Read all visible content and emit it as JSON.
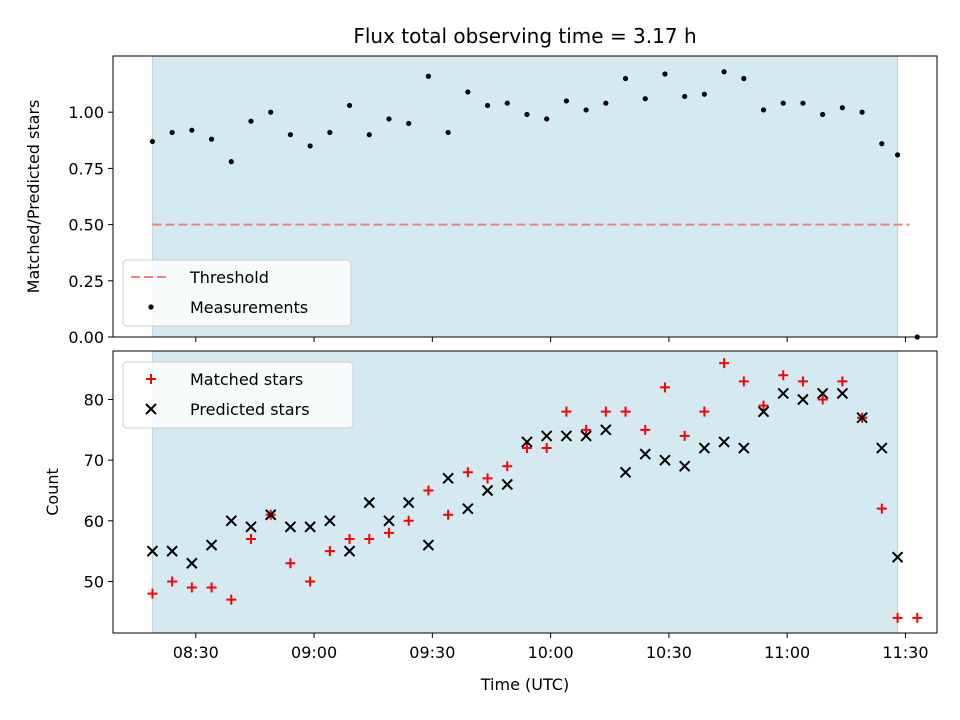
{
  "chart_data": [
    {
      "type": "scatter",
      "title": "Flux total observing time = 3.17 h",
      "xlabel": "",
      "ylabel": "Matched/Predicted stars",
      "ylim": [
        0.0,
        1.25
      ],
      "yticks": [
        "0.00",
        "0.25",
        "0.50",
        "0.75",
        "1.00"
      ],
      "xlim": [
        "08:09",
        "11:38"
      ],
      "xaxis_labels_shown": false,
      "observing_window": {
        "start": "08:19",
        "end": "11:28",
        "color": "#d4eaf0"
      },
      "threshold": {
        "name": "Threshold",
        "value": 0.5,
        "x_start": "08:19",
        "x_end": "11:31",
        "color": "#f08080",
        "style": "dashed"
      },
      "series": [
        {
          "name": "Measurements",
          "color": "#000000",
          "marker": "dot",
          "x": [
            "08:19",
            "08:24",
            "08:29",
            "08:34",
            "08:39",
            "08:44",
            "08:49",
            "08:54",
            "08:59",
            "09:04",
            "09:09",
            "09:14",
            "09:19",
            "09:24",
            "09:29",
            "09:34",
            "09:39",
            "09:44",
            "09:49",
            "09:54",
            "09:59",
            "10:04",
            "10:09",
            "10:14",
            "10:19",
            "10:24",
            "10:29",
            "10:34",
            "10:39",
            "10:44",
            "10:49",
            "10:54",
            "10:59",
            "11:04",
            "11:09",
            "11:14",
            "11:19",
            "11:24",
            "11:28",
            "11:33"
          ],
          "y": [
            0.87,
            0.91,
            0.92,
            0.88,
            0.78,
            0.96,
            1.0,
            0.9,
            0.85,
            0.91,
            1.03,
            0.9,
            0.97,
            0.95,
            1.16,
            0.91,
            1.09,
            1.03,
            1.04,
            0.99,
            0.97,
            1.05,
            1.01,
            1.04,
            1.15,
            1.06,
            1.17,
            1.07,
            1.08,
            1.18,
            1.15,
            1.01,
            1.04,
            1.04,
            0.99,
            1.02,
            1.0,
            0.86,
            0.81,
            0.0
          ]
        }
      ],
      "legend": {
        "placement": "lower-left",
        "entries": [
          "Threshold",
          "Measurements"
        ]
      }
    },
    {
      "type": "scatter",
      "title": "",
      "xlabel": "Time (UTC)",
      "ylabel": "Count",
      "ylim": [
        41.5,
        88.0
      ],
      "yticks": [
        "50",
        "60",
        "70",
        "80"
      ],
      "xlim": [
        "08:09",
        "11:38"
      ],
      "xticks": [
        "08:30",
        "09:00",
        "09:30",
        "10:00",
        "10:30",
        "11:00",
        "11:30"
      ],
      "observing_window": {
        "start": "08:19",
        "end": "11:28",
        "color": "#d4eaf0"
      },
      "series": [
        {
          "name": "Matched stars",
          "color": "#ff0000",
          "marker": "plus",
          "x": [
            "08:19",
            "08:24",
            "08:29",
            "08:34",
            "08:39",
            "08:44",
            "08:49",
            "08:54",
            "08:59",
            "09:04",
            "09:09",
            "09:14",
            "09:19",
            "09:24",
            "09:29",
            "09:34",
            "09:39",
            "09:44",
            "09:49",
            "09:54",
            "09:59",
            "10:04",
            "10:09",
            "10:14",
            "10:19",
            "10:24",
            "10:29",
            "10:34",
            "10:39",
            "10:44",
            "10:49",
            "10:54",
            "10:59",
            "11:04",
            "11:09",
            "11:14",
            "11:19",
            "11:24",
            "11:28",
            "11:33"
          ],
          "y": [
            48,
            50,
            49,
            49,
            47,
            57,
            61,
            53,
            50,
            55,
            57,
            57,
            58,
            60,
            65,
            61,
            68,
            67,
            69,
            72,
            72,
            78,
            75,
            78,
            78,
            75,
            82,
            74,
            78,
            86,
            83,
            79,
            84,
            83,
            80,
            83,
            77,
            62,
            44,
            44
          ]
        },
        {
          "name": "Predicted stars",
          "color": "#000000",
          "marker": "x",
          "x": [
            "08:19",
            "08:24",
            "08:29",
            "08:34",
            "08:39",
            "08:44",
            "08:49",
            "08:54",
            "08:59",
            "09:04",
            "09:09",
            "09:14",
            "09:19",
            "09:24",
            "09:29",
            "09:34",
            "09:39",
            "09:44",
            "09:49",
            "09:54",
            "09:59",
            "10:04",
            "10:09",
            "10:14",
            "10:19",
            "10:24",
            "10:29",
            "10:34",
            "10:39",
            "10:44",
            "10:49",
            "10:54",
            "10:59",
            "11:04",
            "11:09",
            "11:14",
            "11:19",
            "11:24",
            "11:28"
          ],
          "y": [
            55,
            55,
            53,
            56,
            60,
            59,
            61,
            59,
            59,
            60,
            55,
            63,
            60,
            63,
            56,
            67,
            62,
            65,
            66,
            73,
            74,
            74,
            74,
            75,
            68,
            71,
            70,
            69,
            72,
            73,
            72,
            78,
            81,
            80,
            81,
            81,
            77,
            72,
            54
          ]
        }
      ],
      "legend": {
        "placement": "upper-left",
        "entries": [
          "Matched stars",
          "Predicted stars"
        ]
      }
    }
  ]
}
